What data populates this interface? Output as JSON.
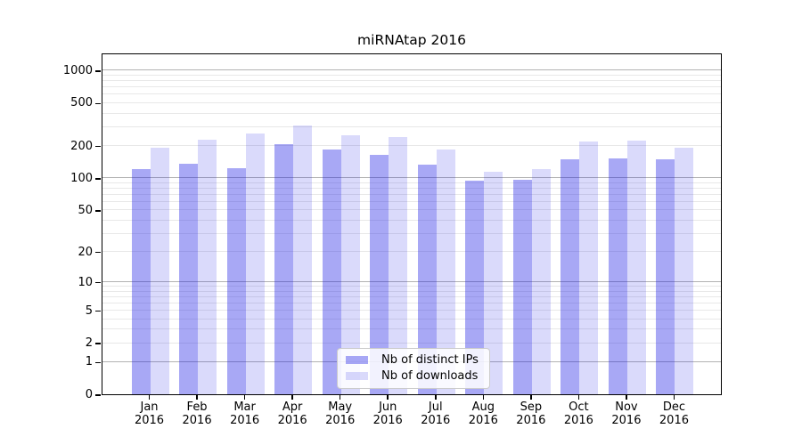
{
  "title": "miRNAtap 2016",
  "chart_data": {
    "type": "bar",
    "title": "miRNAtap 2016",
    "yscale": "log1p",
    "grid": "on",
    "legend_position": "lower-center-inside",
    "categories": [
      "Jan",
      "Feb",
      "Mar",
      "Apr",
      "May",
      "Jun",
      "Jul",
      "Aug",
      "Sep",
      "Oct",
      "Nov",
      "Dec"
    ],
    "x_sublabel": "2016",
    "series": [
      {
        "name": "Nb of distinct IPs",
        "color": "rgba(25,25,230,0.38)",
        "values": [
          120,
          136,
          122,
          207,
          184,
          163,
          133,
          94,
          95,
          150,
          152,
          148
        ]
      },
      {
        "name": "Nb of downloads",
        "color": "rgba(25,25,230,0.16)",
        "values": [
          190,
          227,
          260,
          309,
          248,
          238,
          183,
          115,
          120,
          218,
          224,
          190
        ]
      }
    ],
    "yticks": [
      0,
      1,
      2,
      5,
      10,
      20,
      50,
      100,
      200,
      500,
      1000
    ],
    "major_gridlines": [
      1,
      10,
      100,
      1000
    ],
    "minor_gridlines": [
      3,
      4,
      6,
      7,
      8,
      9,
      30,
      40,
      60,
      70,
      80,
      90,
      300,
      400,
      600,
      700,
      800,
      900
    ],
    "ylim": [
      0,
      1460
    ]
  },
  "colors": {
    "bar_distinct_ips": "rgba(25,25,230,0.38)",
    "bar_downloads": "rgba(25,25,230,0.16)",
    "major_grid": "#b2b2b2",
    "minor_grid": "#e8e8e8"
  }
}
